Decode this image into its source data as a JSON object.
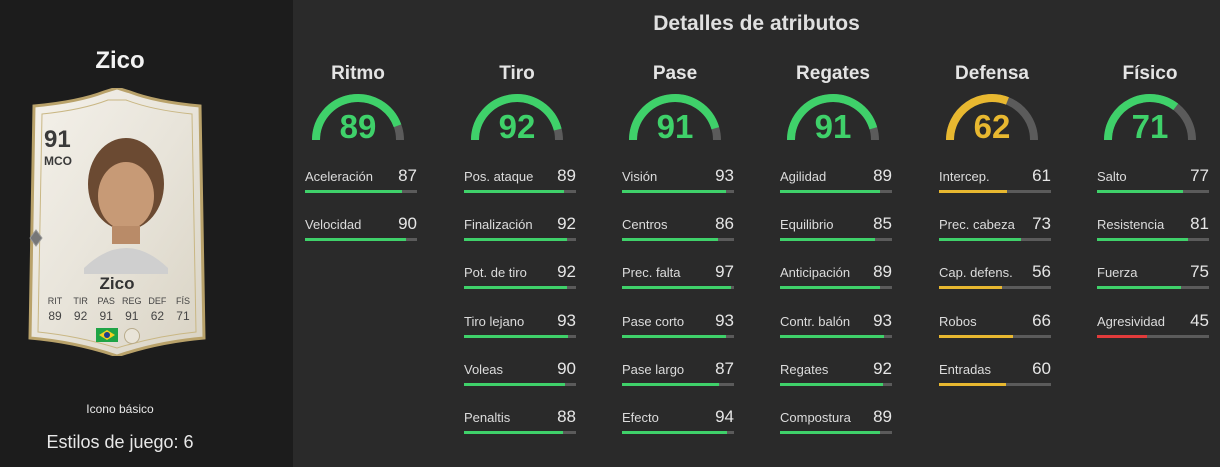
{
  "player": {
    "name": "Zico",
    "card": {
      "rating": "91",
      "position": "MCO",
      "name": "Zico",
      "stat_labels": [
        "RIT",
        "TIR",
        "PAS",
        "REG",
        "DEF",
        "FÍS"
      ],
      "stat_values": [
        "89",
        "92",
        "91",
        "91",
        "62",
        "71"
      ]
    },
    "card_type": "Icono básico",
    "playstyles_label": "Estilos de juego:",
    "playstyles_count": "6"
  },
  "section_title": "Detalles de atributos",
  "colors": {
    "green": "#3fd16a",
    "yellow": "#e8b830",
    "red": "#e23b3b",
    "track": "#5b5b5b"
  },
  "categories": [
    {
      "name": "Ritmo",
      "value": 89,
      "attributes": [
        {
          "name": "Aceleración",
          "value": 87
        },
        {
          "name": "Velocidad",
          "value": 90
        }
      ]
    },
    {
      "name": "Tiro",
      "value": 92,
      "attributes": [
        {
          "name": "Pos. ataque",
          "value": 89
        },
        {
          "name": "Finalización",
          "value": 92
        },
        {
          "name": "Pot. de tiro",
          "value": 92
        },
        {
          "name": "Tiro lejano",
          "value": 93
        },
        {
          "name": "Voleas",
          "value": 90
        },
        {
          "name": "Penaltis",
          "value": 88
        }
      ]
    },
    {
      "name": "Pase",
      "value": 91,
      "attributes": [
        {
          "name": "Visión",
          "value": 93
        },
        {
          "name": "Centros",
          "value": 86
        },
        {
          "name": "Prec. falta",
          "value": 97
        },
        {
          "name": "Pase corto",
          "value": 93
        },
        {
          "name": "Pase largo",
          "value": 87
        },
        {
          "name": "Efecto",
          "value": 94
        }
      ]
    },
    {
      "name": "Regates",
      "value": 91,
      "attributes": [
        {
          "name": "Agilidad",
          "value": 89
        },
        {
          "name": "Equilibrio",
          "value": 85
        },
        {
          "name": "Anticipación",
          "value": 89
        },
        {
          "name": "Contr. balón",
          "value": 93
        },
        {
          "name": "Regates",
          "value": 92
        },
        {
          "name": "Compostura",
          "value": 89
        }
      ]
    },
    {
      "name": "Defensa",
      "value": 62,
      "attributes": [
        {
          "name": "Intercep.",
          "value": 61
        },
        {
          "name": "Prec. cabeza",
          "value": 73
        },
        {
          "name": "Cap. defens.",
          "value": 56
        },
        {
          "name": "Robos",
          "value": 66
        },
        {
          "name": "Entradas",
          "value": 60
        }
      ]
    },
    {
      "name": "Físico",
      "value": 71,
      "attributes": [
        {
          "name": "Salto",
          "value": 77
        },
        {
          "name": "Resistencia",
          "value": 81
        },
        {
          "name": "Fuerza",
          "value": 75
        },
        {
          "name": "Agresividad",
          "value": 45
        }
      ]
    }
  ]
}
